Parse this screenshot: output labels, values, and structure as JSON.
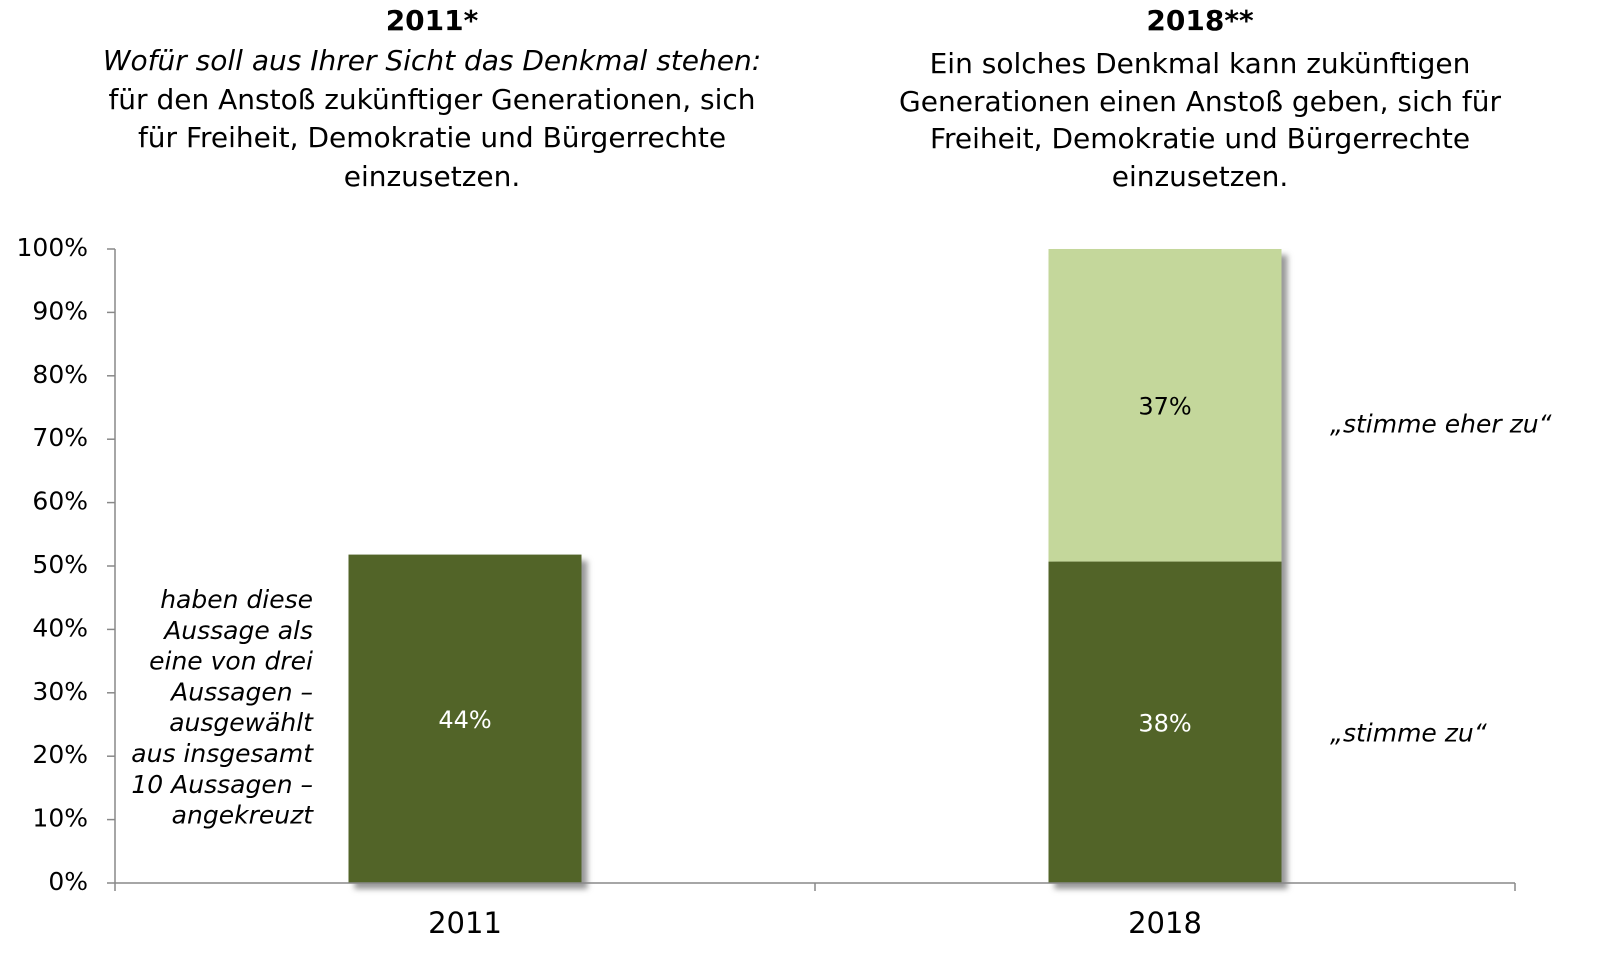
{
  "chart_data": {
    "type": "bar",
    "stacked": true,
    "headers": [
      {
        "title": "2011*",
        "lines": [
          {
            "text": "Wofür soll aus Ihrer Sicht das Denkmal stehen:",
            "italic": true
          },
          {
            "text": "für den Anstoß zukünftiger Generationen, sich"
          },
          {
            "text": "für Freiheit, Demokratie und Bürgerrechte"
          },
          {
            "text": "einzusetzen."
          }
        ]
      },
      {
        "title": "2018**",
        "lines": [
          {
            "text": "Ein solches Denkmal kann zukünftigen"
          },
          {
            "text": "Generationen einen Anstoß geben, sich für"
          },
          {
            "text": "Freiheit, Demokratie und Bürgerrechte"
          },
          {
            "text": "einzusetzen."
          }
        ]
      }
    ],
    "note": [
      "haben diese",
      "Aussage als",
      "eine von drei",
      "Aussagen –",
      "ausgewählt",
      "aus insgesamt",
      "10 Aussagen –",
      "angekreuzt"
    ],
    "categories": [
      "2011",
      "2018"
    ],
    "series": [
      {
        "name": "„stimme zu“",
        "color": "#526428",
        "values": [
          51.8,
          50.7
        ],
        "labels": [
          "44%",
          "38%"
        ]
      },
      {
        "name": "„stimme eher zu“",
        "color": "#c4d79b",
        "values": [
          null,
          49.3
        ],
        "labels": [
          null,
          "37%"
        ]
      }
    ],
    "ylim": [
      0,
      100
    ],
    "yticks": [
      {
        "value": 0,
        "label": "0%"
      },
      {
        "value": 10,
        "label": "10%"
      },
      {
        "value": 20,
        "label": "20%"
      },
      {
        "value": 30,
        "label": "30%"
      },
      {
        "value": 40,
        "label": "40%"
      },
      {
        "value": 50,
        "label": "50%"
      },
      {
        "value": 60,
        "label": "60%"
      },
      {
        "value": 70,
        "label": "70%"
      },
      {
        "value": 80,
        "label": "80%"
      },
      {
        "value": 90,
        "label": "90%"
      },
      {
        "value": 100,
        "label": "100%"
      }
    ]
  }
}
